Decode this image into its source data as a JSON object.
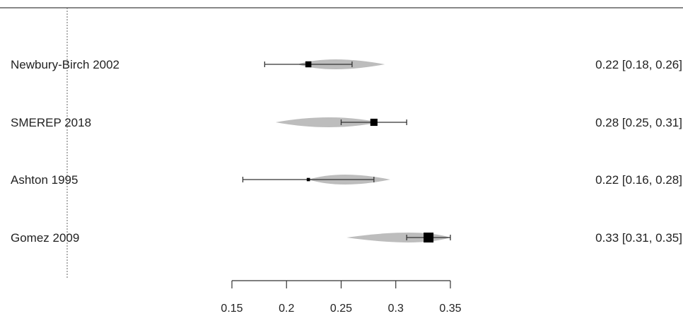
{
  "chart_data": {
    "type": "forest",
    "title": "",
    "xlabel": "",
    "ylabel": "",
    "xlim": [
      0.15,
      0.35
    ],
    "xticks": [
      0.15,
      0.2,
      0.25,
      0.3,
      0.35
    ],
    "xtick_labels": [
      "0.15",
      "0.2",
      "0.25",
      "0.3",
      "0.35"
    ],
    "reference_line": 0,
    "grid": false,
    "colors": {
      "estimate": "#000000",
      "ci": "#333333",
      "posterior_density": "#bdbdbd",
      "axis": "#333333",
      "top_rule": "#888888",
      "reference": "#666666"
    },
    "studies": [
      {
        "label": "Newbury-Birch 2002",
        "estimate": 0.22,
        "ci_low": 0.18,
        "ci_high": 0.26,
        "summary_text": "0.22 [0.18, 0.26]",
        "density": {
          "low": 0.21,
          "mode": 0.24,
          "high": 0.29
        },
        "weight": 0.5
      },
      {
        "label": "SMEREP 2018",
        "estimate": 0.28,
        "ci_low": 0.25,
        "ci_high": 0.31,
        "summary_text": "0.28 [0.25, 0.31]",
        "density": {
          "low": 0.19,
          "mode": 0.24,
          "high": 0.285
        },
        "weight": 0.65
      },
      {
        "label": "Ashton 1995",
        "estimate": 0.22,
        "ci_low": 0.16,
        "ci_high": 0.28,
        "summary_text": "0.22 [0.16, 0.28]",
        "density": {
          "low": 0.22,
          "mode": 0.25,
          "high": 0.295
        },
        "weight": 0.15
      },
      {
        "label": "Gomez 2009",
        "estimate": 0.33,
        "ci_low": 0.31,
        "ci_high": 0.35,
        "summary_text": "0.33 [0.31, 0.35]",
        "density": {
          "low": 0.255,
          "mode": 0.32,
          "high": 0.35
        },
        "weight": 1.0
      }
    ]
  }
}
